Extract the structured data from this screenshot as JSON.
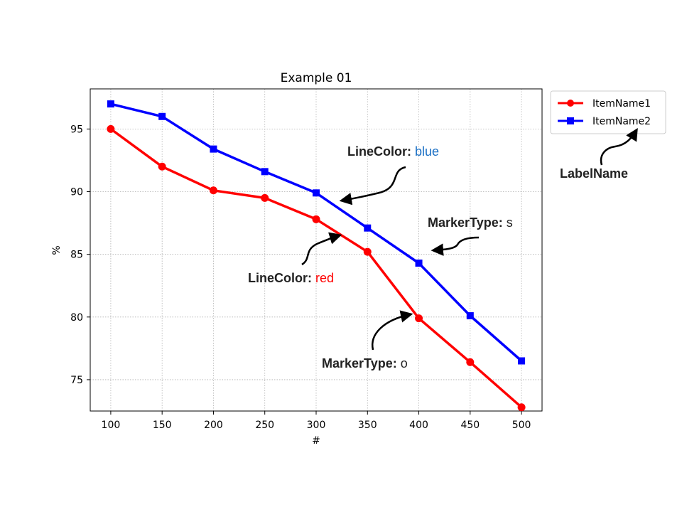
{
  "chart_data": {
    "type": "line",
    "title": "Example 01",
    "xlabel": "#",
    "ylabel": "%",
    "x": [
      100,
      150,
      200,
      250,
      300,
      350,
      400,
      450,
      500
    ],
    "xlim": [
      80,
      520
    ],
    "ylim": [
      72.5,
      98.2
    ],
    "xticks": [
      100,
      150,
      200,
      250,
      300,
      350,
      400,
      450,
      500
    ],
    "yticks": [
      75,
      80,
      85,
      90,
      95
    ],
    "grid": true,
    "legend_position": "outside-top-right",
    "series": [
      {
        "name": "ItemName1",
        "color": "#ff0000",
        "marker": "o",
        "values": [
          95.0,
          92.0,
          90.1,
          89.5,
          87.8,
          85.2,
          79.9,
          76.4,
          72.8
        ]
      },
      {
        "name": "ItemName2",
        "color": "#0000ff",
        "marker": "s",
        "values": [
          97.0,
          96.0,
          93.4,
          91.6,
          89.9,
          87.1,
          84.3,
          80.1,
          76.5
        ]
      }
    ],
    "annotations": [
      {
        "key": "LineColor:",
        "value": "blue",
        "value_color": "#1a6fc4"
      },
      {
        "key": "LineColor:",
        "value": "red",
        "value_color": "#ff0000"
      },
      {
        "key": "MarkerType:",
        "value": "s",
        "value_color": "#222222"
      },
      {
        "key": "MarkerType:",
        "value": "o",
        "value_color": "#222222"
      },
      {
        "key": "LabelName",
        "value": "",
        "value_color": "#222222"
      }
    ]
  }
}
